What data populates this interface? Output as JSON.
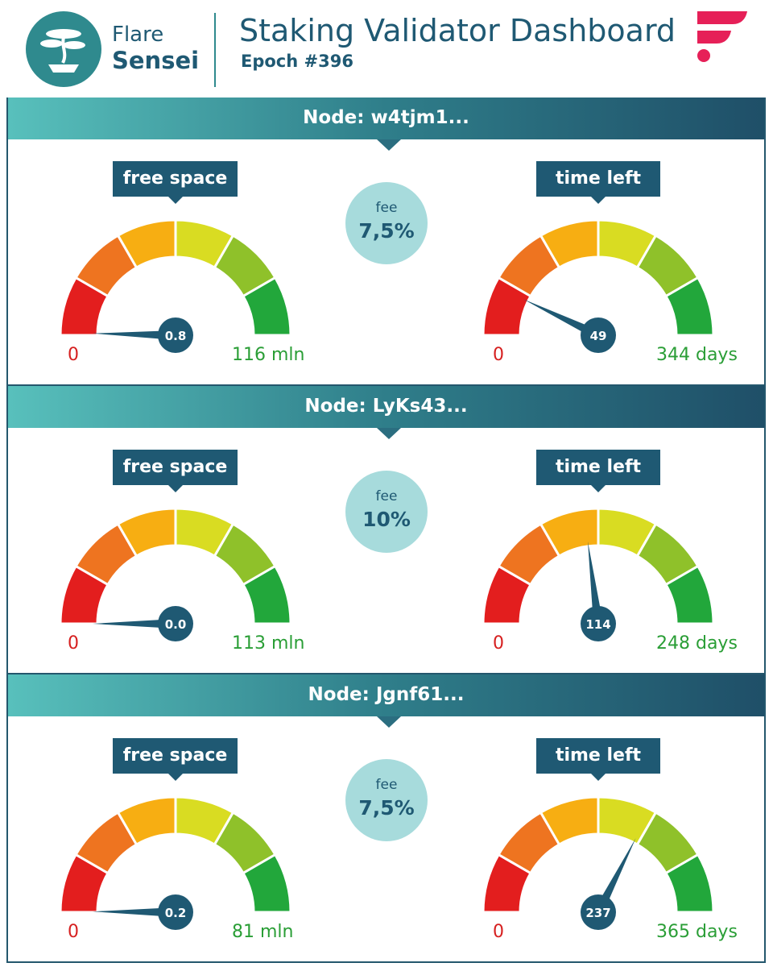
{
  "header": {
    "brand_line1": "Flare",
    "brand_line2": "Sensei",
    "title": "Staking Validator Dashboard",
    "epoch": "Epoch #396",
    "logo_icon": "bonsai-tree-icon",
    "flare_icon": "flare-logo-icon"
  },
  "labels": {
    "free_space": "free space",
    "time_left": "time left",
    "fee": "fee"
  },
  "colors": {
    "segments": [
      "#e31e1e",
      "#ee7420",
      "#f7ae12",
      "#d9dc22",
      "#8fc12a",
      "#22a73b"
    ],
    "accent": "#1f5973",
    "fee_bubble": "#a7dbdc"
  },
  "nodes": [
    {
      "title": "Node: w4tjm1...",
      "fee": "7,5%",
      "space": {
        "value": 0.8,
        "value_label": "0.8",
        "min": 0,
        "max": 116,
        "min_label": "0",
        "max_label": "116 mln"
      },
      "time": {
        "value": 49,
        "value_label": "49",
        "min": 0,
        "max": 344,
        "min_label": "0",
        "max_label": "344 days"
      }
    },
    {
      "title": "Node: LyKs43...",
      "fee": "10%",
      "space": {
        "value": 0.0,
        "value_label": "0.0",
        "min": 0,
        "max": 113,
        "min_label": "0",
        "max_label": "113 mln"
      },
      "time": {
        "value": 114,
        "value_label": "114",
        "min": 0,
        "max": 248,
        "min_label": "0",
        "max_label": "248 days"
      }
    },
    {
      "title": "Node: Jgnf61...",
      "fee": "7,5%",
      "space": {
        "value": 0.2,
        "value_label": "0.2",
        "min": 0,
        "max": 81,
        "min_label": "0",
        "max_label": "81 mln"
      },
      "time": {
        "value": 237,
        "value_label": "237",
        "min": 0,
        "max": 365,
        "min_label": "0",
        "max_label": "365 days"
      }
    }
  ]
}
